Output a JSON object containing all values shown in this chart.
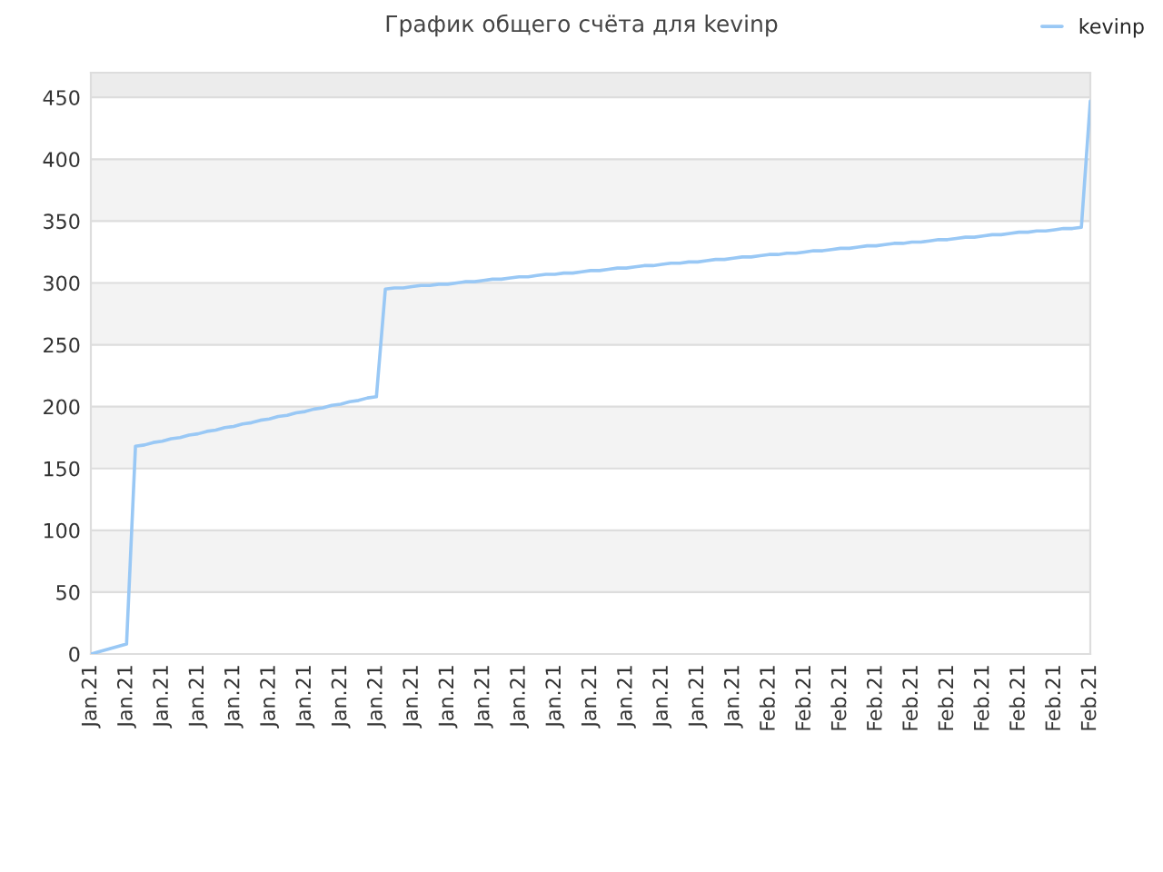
{
  "chart_data": {
    "type": "line",
    "title": "График общего счёта для kevinp",
    "categories": [
      "Jan.21",
      null,
      null,
      null,
      "Jan.21",
      null,
      null,
      null,
      "Jan.21",
      null,
      null,
      null,
      "Jan.21",
      null,
      null,
      null,
      "Jan.21",
      null,
      null,
      null,
      "Jan.21",
      null,
      null,
      null,
      "Jan.21",
      null,
      null,
      null,
      "Jan.21",
      null,
      null,
      null,
      "Jan.21",
      null,
      null,
      null,
      "Jan.21",
      null,
      null,
      null,
      "Jan.21",
      null,
      null,
      null,
      "Jan.21",
      null,
      null,
      null,
      "Jan.21",
      null,
      null,
      null,
      "Jan.21",
      null,
      null,
      null,
      "Jan.21",
      null,
      null,
      null,
      "Jan.21",
      null,
      null,
      null,
      "Jan.21",
      null,
      null,
      null,
      "Jan.21",
      null,
      null,
      null,
      "Jan.21",
      null,
      null,
      null,
      "Feb.21",
      null,
      null,
      null,
      "Feb.21",
      null,
      null,
      null,
      "Feb.21",
      null,
      null,
      null,
      "Feb.21",
      null,
      null,
      null,
      "Feb.21",
      null,
      null,
      null,
      "Feb.21",
      null,
      null,
      null,
      "Feb.21",
      null,
      null,
      null,
      "Feb.21",
      null,
      null,
      null,
      "Feb.21",
      null,
      null,
      null,
      "Feb.21"
    ],
    "ylim": [
      0,
      470
    ],
    "yticks": [
      0,
      50,
      100,
      150,
      200,
      250,
      300,
      350,
      400,
      450
    ],
    "grid": "y",
    "legend": "top right",
    "marker": "none",
    "line_style": "solid",
    "bands": [
      {
        "axis": "y",
        "from": 50,
        "to": 100,
        "color": "#f3f3f3"
      },
      {
        "axis": "y",
        "from": 150,
        "to": 200,
        "color": "#f3f3f3"
      },
      {
        "axis": "y",
        "from": 250,
        "to": 300,
        "color": "#f3f3f3"
      },
      {
        "axis": "y",
        "from": 350,
        "to": 400,
        "color": "#f3f3f3"
      },
      {
        "axis": "y",
        "from": 450,
        "to": 470,
        "color": "#ececec"
      }
    ],
    "series": [
      {
        "name": "kevinp",
        "color": "#99c8f5",
        "values": [
          0,
          2,
          4,
          6,
          8,
          168,
          169,
          171,
          172,
          174,
          175,
          177,
          178,
          180,
          181,
          183,
          184,
          186,
          187,
          189,
          190,
          192,
          193,
          195,
          196,
          198,
          199,
          201,
          202,
          204,
          205,
          207,
          208,
          295,
          296,
          296,
          297,
          298,
          298,
          299,
          299,
          300,
          301,
          301,
          302,
          303,
          303,
          304,
          305,
          305,
          306,
          307,
          307,
          308,
          308,
          309,
          310,
          310,
          311,
          312,
          312,
          313,
          314,
          314,
          315,
          316,
          316,
          317,
          317,
          318,
          319,
          319,
          320,
          321,
          321,
          322,
          323,
          323,
          324,
          324,
          325,
          326,
          326,
          327,
          328,
          328,
          329,
          330,
          330,
          331,
          332,
          332,
          333,
          333,
          334,
          335,
          335,
          336,
          337,
          337,
          338,
          339,
          339,
          340,
          341,
          341,
          342,
          342,
          343,
          344,
          344,
          345,
          447
        ]
      }
    ]
  }
}
